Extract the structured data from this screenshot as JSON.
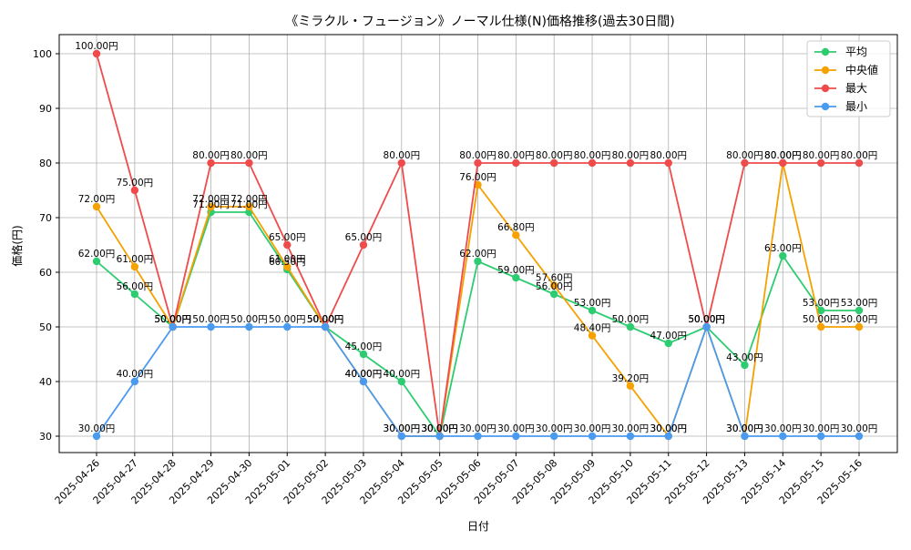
{
  "chart_data": {
    "type": "line",
    "title": "《ミラクル・フュージョン》ノーマル仕様(N)価格推移(過去30日間)",
    "xlabel": "日付",
    "ylabel": "価格(円)",
    "ylim": [
      27,
      103.5
    ],
    "yticks": [
      30,
      40,
      50,
      60,
      70,
      80,
      90,
      100
    ],
    "grid": true,
    "legend_position": "top-right",
    "unit_suffix": "円",
    "categories": [
      "2025-04-26",
      "2025-04-27",
      "2025-04-28",
      "2025-04-29",
      "2025-04-30",
      "2025-05-01",
      "2025-05-02",
      "2025-05-03",
      "2025-05-04",
      "2025-05-05",
      "2025-05-06",
      "2025-05-07",
      "2025-05-08",
      "2025-05-09",
      "2025-05-10",
      "2025-05-11",
      "2025-05-12",
      "2025-05-13",
      "2025-05-14",
      "2025-05-15",
      "2025-05-16"
    ],
    "series": [
      {
        "name": "平均",
        "color": "#2ecc71",
        "values": [
          62,
          56,
          50,
          71,
          71,
          60.5,
          50,
          45,
          40,
          30,
          62,
          59,
          56,
          53,
          50,
          47,
          50,
          43,
          63,
          53,
          53
        ]
      },
      {
        "name": "中央値",
        "color": "#f5a100",
        "values": [
          72,
          61,
          50,
          72,
          72,
          61,
          50,
          40,
          30,
          30,
          76,
          66.8,
          57.6,
          48.4,
          39.2,
          30,
          50,
          30,
          80,
          50,
          50
        ]
      },
      {
        "name": "最大",
        "color": "#ef4b4b",
        "values": [
          100,
          75,
          50,
          80,
          80,
          65,
          50,
          65,
          80,
          30,
          80,
          80,
          80,
          80,
          80,
          80,
          50,
          80,
          80,
          80,
          80
        ]
      },
      {
        "name": "最小",
        "color": "#4a9af0",
        "values": [
          30,
          40,
          50,
          50,
          50,
          50,
          50,
          40,
          30,
          30,
          30,
          30,
          30,
          30,
          30,
          30,
          50,
          30,
          30,
          30,
          30
        ]
      }
    ]
  }
}
